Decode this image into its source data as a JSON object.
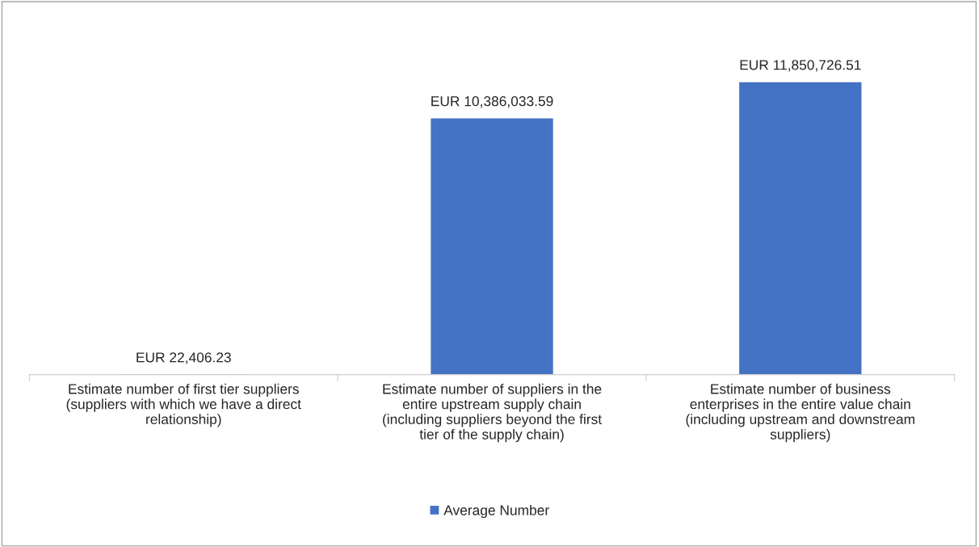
{
  "chart_data": {
    "type": "bar",
    "categories": [
      "Estimate number of first tier suppliers\n(suppliers with which we have a direct\nrelationship)",
      "Estimate number of suppliers in the\nentire upstream supply chain\n(including suppliers beyond the first\ntier of the supply chain)",
      "Estimate number of business\nenterprises in the entire value chain\n(including upstream and downstream\nsuppliers)"
    ],
    "series": [
      {
        "name": "Average Number",
        "color": "#4472c4",
        "values": [
          22406.23,
          10386033.59,
          11850726.51
        ],
        "value_labels": [
          "EUR 22,406.23",
          "EUR 10,386,033.59",
          "EUR 11,850,726.51"
        ]
      }
    ],
    "legend": "bottom",
    "grid": false
  }
}
